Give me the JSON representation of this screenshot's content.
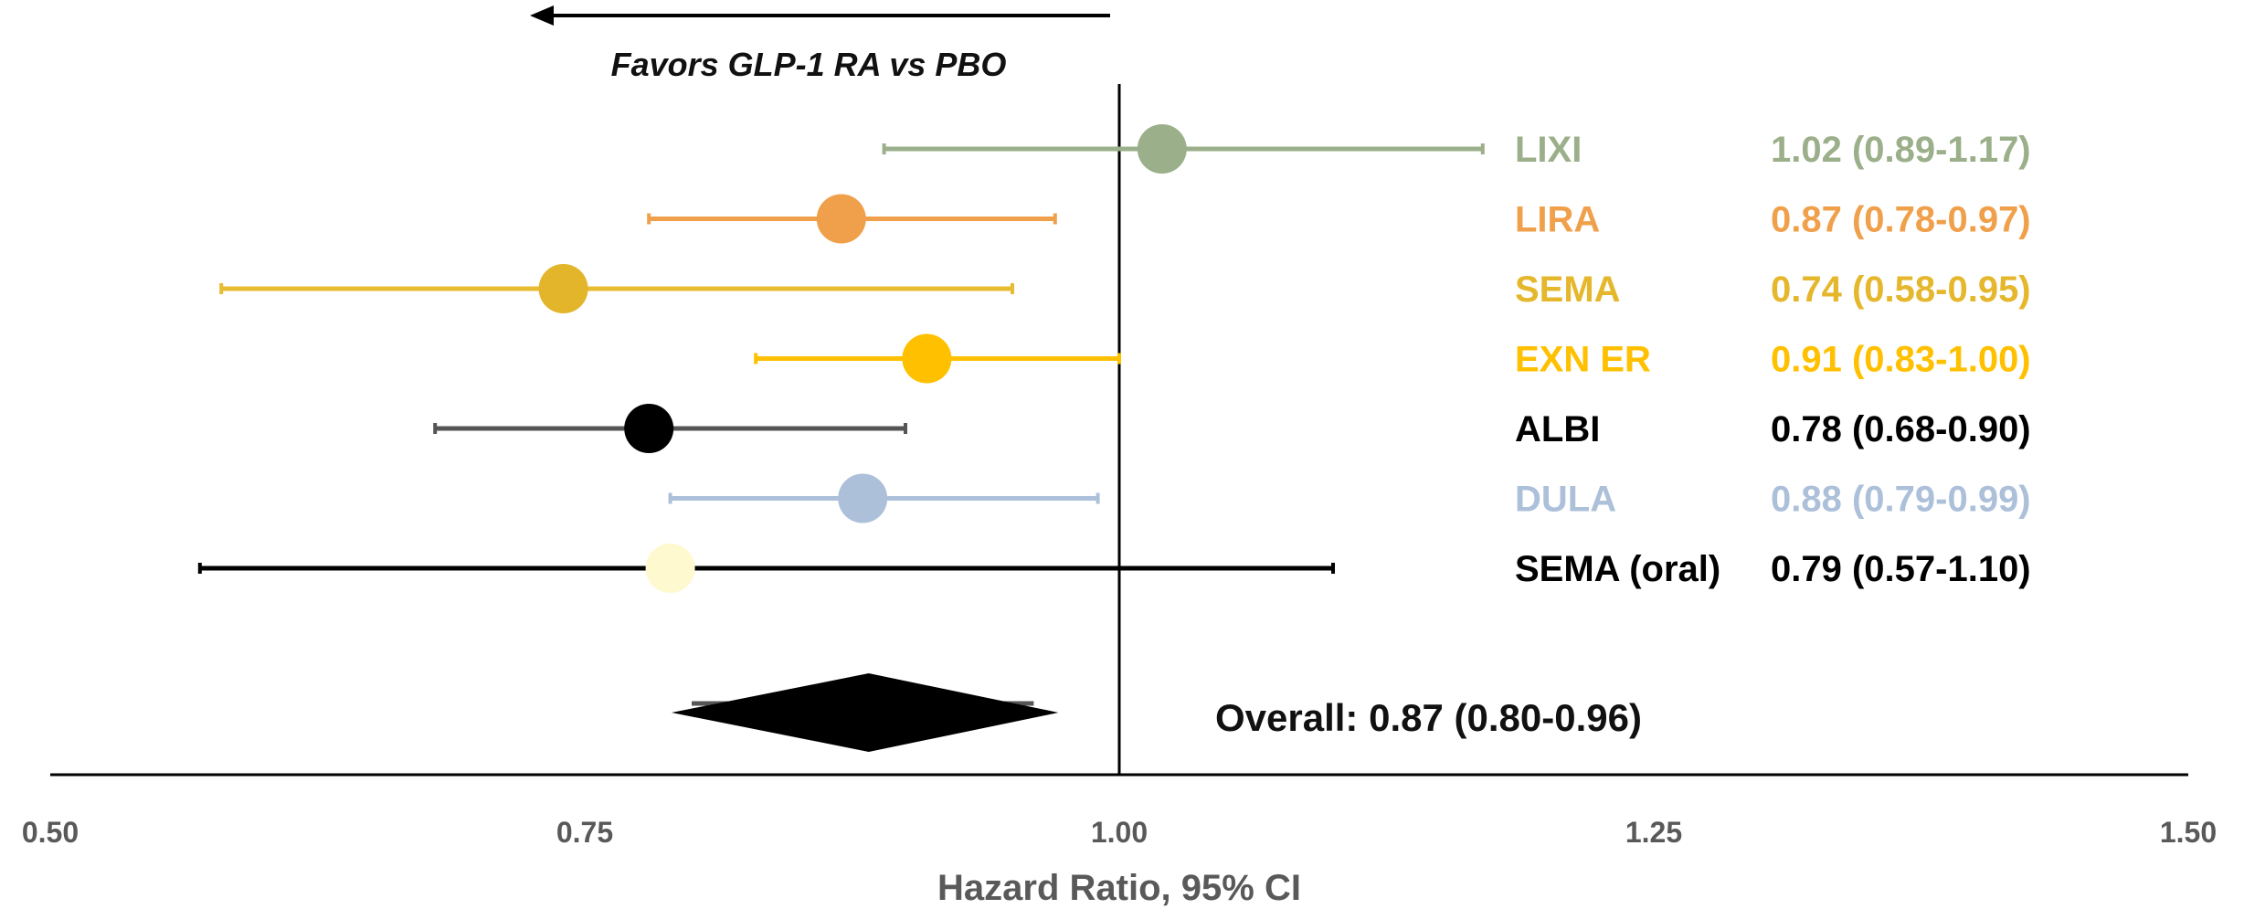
{
  "chart_data": {
    "type": "forest",
    "xlabel": "Hazard Ratio, 95% CI",
    "xlim": [
      0.5,
      1.5
    ],
    "x_ticks": [
      0.5,
      0.75,
      1.0,
      1.25,
      1.5
    ],
    "x_tick_labels": [
      "0.50",
      "0.75",
      "1.00",
      "1.25",
      "1.50"
    ],
    "reference_line": 1.0,
    "direction_annotation": "Favors GLP-1 RA vs PBO",
    "direction_arrow": "left",
    "series": [
      {
        "name": "LIXI",
        "hr": 1.02,
        "lower": 0.89,
        "upper": 1.17,
        "label": "1.02 (0.89-1.17)",
        "color": "#9BAF8A",
        "line_color": "#9BAF8A",
        "text_color": "#9BAF8A"
      },
      {
        "name": "LIRA",
        "hr": 0.87,
        "lower": 0.78,
        "upper": 0.97,
        "label": "0.87 (0.78-0.97)",
        "color": "#F0A04B",
        "line_color": "#F0A04B",
        "text_color": "#F0A04B"
      },
      {
        "name": "SEMA",
        "hr": 0.74,
        "lower": 0.58,
        "upper": 0.95,
        "label": "0.74 (0.58-0.95)",
        "color": "#E3B52A",
        "line_color": "#E8BC30",
        "text_color": "#E5B72C"
      },
      {
        "name": "EXN ER",
        "hr": 0.91,
        "lower": 0.83,
        "upper": 1.0,
        "label": "0.91 (0.83-1.00)",
        "color": "#FFC000",
        "line_color": "#FFC000",
        "text_color": "#FFC000"
      },
      {
        "name": "ALBI",
        "hr": 0.78,
        "lower": 0.68,
        "upper": 0.9,
        "label": "0.78 (0.68-0.90)",
        "color": "#000000",
        "line_color": "#555555",
        "text_color": "#000000"
      },
      {
        "name": "DULA",
        "hr": 0.88,
        "lower": 0.79,
        "upper": 0.99,
        "label": "0.88 (0.79-0.99)",
        "color": "#ADC0DA",
        "line_color": "#ADC0DA",
        "text_color": "#ADC0DA"
      },
      {
        "name": "SEMA (oral)",
        "hr": 0.79,
        "lower": 0.57,
        "upper": 1.1,
        "label": "0.79 (0.57-1.10)",
        "color": "#FFF9CF",
        "line_color": "#000000",
        "text_color": "#000000"
      }
    ],
    "overall": {
      "text": "Overall: 0.87 (0.80-0.96)",
      "hr": 0.87,
      "lower": 0.8,
      "upper": 0.96,
      "color": "#000000"
    }
  }
}
